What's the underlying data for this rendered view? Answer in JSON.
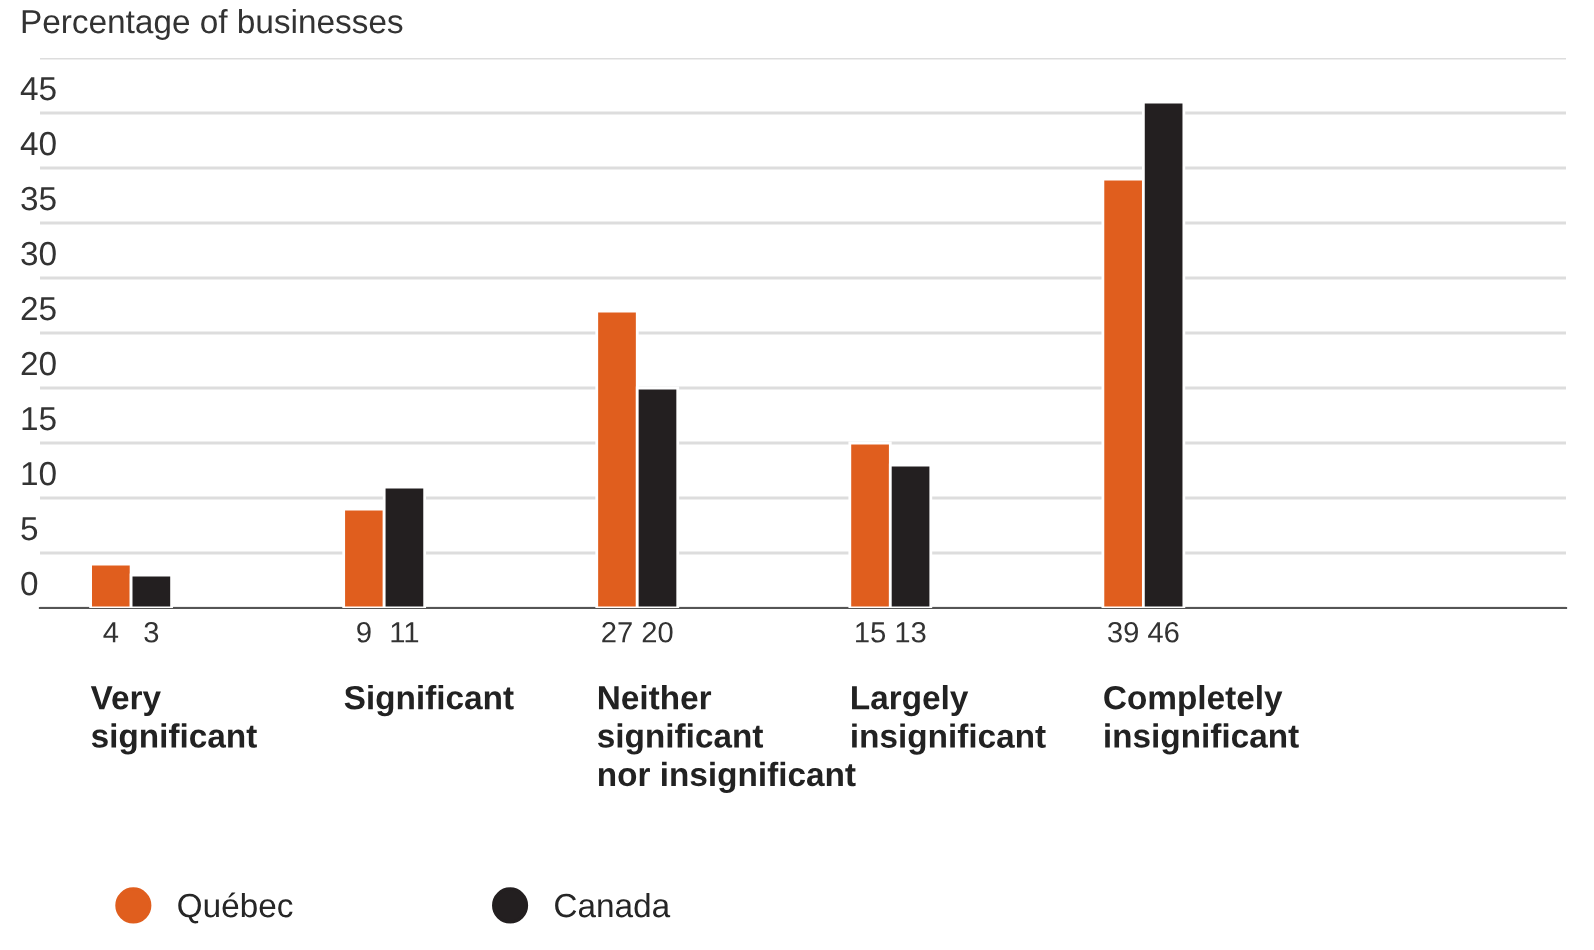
{
  "chart_data": {
    "type": "bar",
    "ylabel": "Percentage of businesses",
    "categories": [
      "Very\nsignificant",
      "Significant",
      "Neither\nsignificant\nnor insignificant",
      "Largely\ninsignificant",
      "Completely\ninsignificant"
    ],
    "series": [
      {
        "name": "Québec",
        "color": "#e05e1e",
        "values": [
          4,
          9,
          27,
          15,
          39
        ]
      },
      {
        "name": "Canada",
        "color": "#231f20",
        "values": [
          3,
          11,
          20,
          13,
          46
        ]
      }
    ],
    "ylim": [
      0,
      50
    ],
    "yticks": [
      0,
      5,
      10,
      15,
      20,
      25,
      30,
      35,
      40,
      45,
      {
        "value": 50,
        "label": null
      }
    ],
    "grid": "y",
    "data_labels": true,
    "legend": "bottom left"
  }
}
